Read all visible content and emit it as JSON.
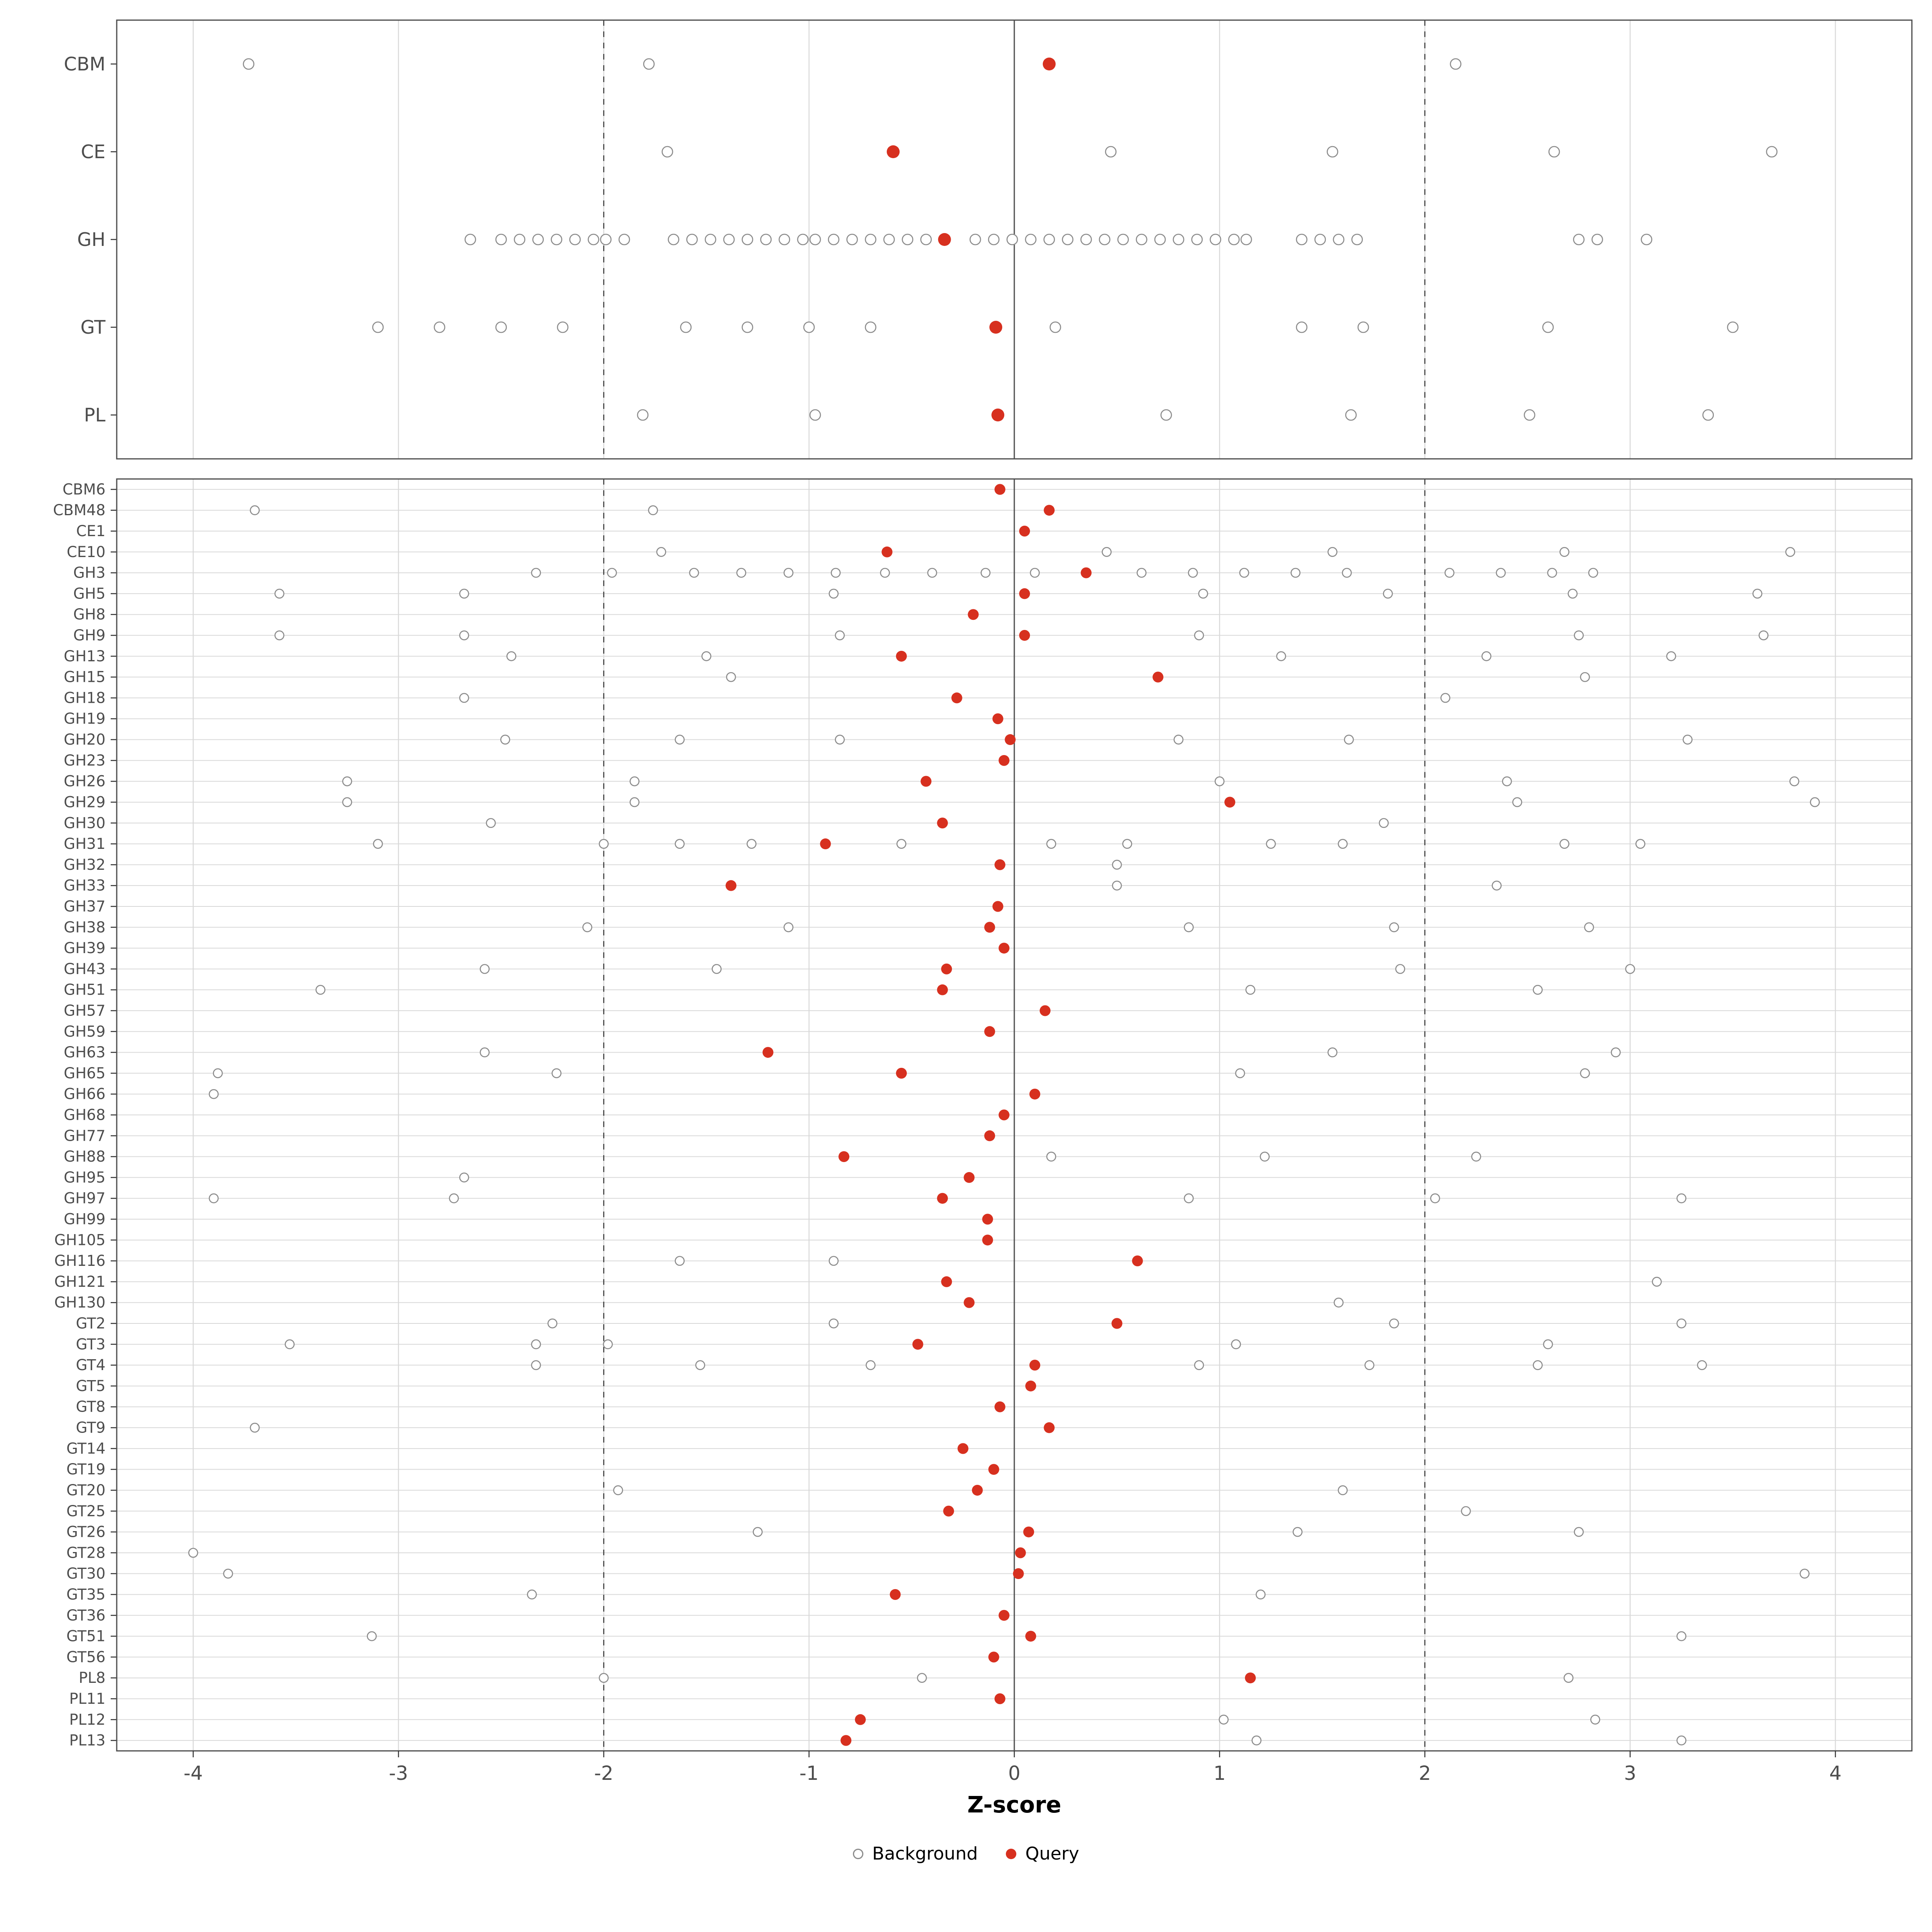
{
  "chart_data": {
    "type": "scatter",
    "title": "",
    "xlabel": "Z-score",
    "ylabel": "",
    "xlim": [
      -4.37,
      4.37
    ],
    "x_ticks": [
      -4,
      -3,
      -2,
      -1,
      0,
      1,
      2,
      3,
      4
    ],
    "reference_lines": {
      "solid": [
        0
      ],
      "dashed": [
        -2,
        2
      ]
    },
    "grid": true,
    "legend_position": "bottom",
    "legend": [
      {
        "label": "Background",
        "marker": "open-circle",
        "color": "#8c8c8c"
      },
      {
        "label": "Query",
        "marker": "filled-circle",
        "color": "#D7301F"
      }
    ],
    "colors": {
      "query": "#D7301F",
      "background_stroke": "#8c8c8c",
      "grid_major": "#d9d9d9",
      "axis_text": "#4d4d4d",
      "panel_border": "#4d4d4d",
      "ref_line": "#333333"
    },
    "panels": [
      {
        "name": "class-panel",
        "rows": [
          {
            "label": "CBM",
            "query": 0.17,
            "background": [
              -3.73,
              -1.78,
              2.15
            ]
          },
          {
            "label": "CE",
            "query": -0.59,
            "background": [
              -1.69,
              0.47,
              1.55,
              2.63,
              3.69
            ]
          },
          {
            "label": "GH",
            "query": -0.34,
            "background": [
              -2.65,
              -2.5,
              -2.41,
              -2.32,
              -2.23,
              -2.14,
              -2.05,
              -1.99,
              -1.9,
              -1.66,
              -1.57,
              -1.48,
              -1.39,
              -1.3,
              -1.21,
              -1.12,
              -1.03,
              -0.97,
              -0.88,
              -0.79,
              -0.7,
              -0.61,
              -0.52,
              -0.43,
              -0.19,
              -0.1,
              -0.01,
              0.08,
              0.17,
              0.26,
              0.35,
              0.44,
              0.53,
              0.62,
              0.71,
              0.8,
              0.89,
              0.98,
              1.07,
              1.13,
              1.4,
              1.49,
              1.58,
              1.67,
              2.75,
              2.84,
              3.08
            ]
          },
          {
            "label": "GT",
            "query": -0.09,
            "background": [
              -3.1,
              -2.8,
              -2.5,
              -2.2,
              -1.6,
              -1.3,
              -1.0,
              -0.7,
              0.2,
              1.4,
              1.7,
              2.6,
              3.5
            ]
          },
          {
            "label": "PL",
            "query": -0.08,
            "background": [
              -1.81,
              -0.97,
              0.74,
              1.64,
              2.51,
              3.38
            ]
          }
        ]
      },
      {
        "name": "family-panel",
        "rows": [
          {
            "label": "CBM6",
            "query": -0.07,
            "background": []
          },
          {
            "label": "CBM48",
            "query": 0.17,
            "background": [
              -3.7,
              -1.76
            ]
          },
          {
            "label": "CE1",
            "query": 0.05,
            "background": []
          },
          {
            "label": "CE10",
            "query": -0.62,
            "background": [
              -1.72,
              0.45,
              1.55,
              2.68,
              3.78
            ]
          },
          {
            "label": "GH3",
            "query": 0.35,
            "background": [
              -2.33,
              -1.96,
              -1.56,
              -1.33,
              -1.1,
              -0.87,
              -0.63,
              -0.4,
              -0.14,
              0.1,
              0.62,
              0.87,
              1.12,
              1.37,
              1.62,
              2.12,
              2.37,
              2.62,
              2.82
            ]
          },
          {
            "label": "GH5",
            "query": 0.05,
            "background": [
              -3.58,
              -2.68,
              -0.88,
              0.92,
              1.82,
              2.72,
              3.62
            ]
          },
          {
            "label": "GH8",
            "query": -0.2,
            "background": []
          },
          {
            "label": "GH9",
            "query": 0.05,
            "background": [
              -3.58,
              -2.68,
              -0.85,
              0.9,
              2.75,
              3.65
            ]
          },
          {
            "label": "GH13",
            "query": -0.55,
            "background": [
              -2.45,
              -1.5,
              1.3,
              2.3,
              3.2
            ]
          },
          {
            "label": "GH15",
            "query": 0.7,
            "background": [
              -1.38,
              2.78
            ]
          },
          {
            "label": "GH18",
            "query": -0.28,
            "background": [
              -2.68,
              2.1
            ]
          },
          {
            "label": "GH19",
            "query": -0.08,
            "background": []
          },
          {
            "label": "GH20",
            "query": -0.02,
            "background": [
              -2.48,
              -1.63,
              -0.85,
              0.8,
              1.63,
              3.28
            ]
          },
          {
            "label": "GH23",
            "query": -0.05,
            "background": []
          },
          {
            "label": "GH26",
            "query": -0.43,
            "background": [
              -3.25,
              -1.85,
              1.0,
              2.4,
              3.8
            ]
          },
          {
            "label": "GH29",
            "query": 1.05,
            "background": [
              -3.25,
              -1.85,
              2.45,
              3.9
            ]
          },
          {
            "label": "GH30",
            "query": -0.35,
            "background": [
              -2.55,
              1.8
            ]
          },
          {
            "label": "GH31",
            "query": -0.92,
            "background": [
              -3.1,
              -2.0,
              -1.63,
              -1.28,
              -0.55,
              0.18,
              0.55,
              1.25,
              1.6,
              2.68,
              3.05
            ]
          },
          {
            "label": "GH32",
            "query": -0.07,
            "background": [
              0.5
            ]
          },
          {
            "label": "GH33",
            "query": -1.38,
            "background": [
              0.5,
              2.35
            ]
          },
          {
            "label": "GH37",
            "query": -0.08,
            "background": []
          },
          {
            "label": "GH38",
            "query": -0.12,
            "background": [
              -2.08,
              -1.1,
              0.85,
              1.85,
              2.8
            ]
          },
          {
            "label": "GH39",
            "query": -0.05,
            "background": []
          },
          {
            "label": "GH43",
            "query": -0.33,
            "background": [
              -2.58,
              -1.45,
              1.88,
              3.0
            ]
          },
          {
            "label": "GH51",
            "query": -0.35,
            "background": [
              -3.38,
              1.15,
              2.55
            ]
          },
          {
            "label": "GH57",
            "query": 0.15,
            "background": []
          },
          {
            "label": "GH59",
            "query": -0.12,
            "background": []
          },
          {
            "label": "GH63",
            "query": -1.2,
            "background": [
              -2.58,
              1.55,
              2.93
            ]
          },
          {
            "label": "GH65",
            "query": -0.55,
            "background": [
              -3.88,
              -2.23,
              1.1,
              2.78
            ]
          },
          {
            "label": "GH66",
            "query": 0.1,
            "background": [
              -3.9
            ]
          },
          {
            "label": "GH68",
            "query": -0.05,
            "background": []
          },
          {
            "label": "GH77",
            "query": -0.12,
            "background": []
          },
          {
            "label": "GH88",
            "query": -0.83,
            "background": [
              0.18,
              1.22,
              2.25
            ]
          },
          {
            "label": "GH95",
            "query": -0.22,
            "background": [
              -2.68
            ]
          },
          {
            "label": "GH97",
            "query": -0.35,
            "background": [
              -3.9,
              -2.73,
              0.85,
              2.05,
              3.25
            ]
          },
          {
            "label": "GH99",
            "query": -0.13,
            "background": []
          },
          {
            "label": "GH105",
            "query": -0.13,
            "background": []
          },
          {
            "label": "GH116",
            "query": 0.6,
            "background": [
              -1.63,
              -0.88
            ]
          },
          {
            "label": "GH121",
            "query": -0.33,
            "background": [
              3.13
            ]
          },
          {
            "label": "GH130",
            "query": -0.22,
            "background": [
              1.58
            ]
          },
          {
            "label": "GT2",
            "query": 0.5,
            "background": [
              -2.25,
              -0.88,
              1.85,
              3.25
            ]
          },
          {
            "label": "GT3",
            "query": -0.47,
            "background": [
              -3.53,
              -2.33,
              -1.98,
              1.08,
              2.6
            ]
          },
          {
            "label": "GT4",
            "query": 0.1,
            "background": [
              -2.33,
              -1.53,
              -0.7,
              0.9,
              1.73,
              2.55,
              3.35
            ]
          },
          {
            "label": "GT5",
            "query": 0.08,
            "background": []
          },
          {
            "label": "GT8",
            "query": -0.07,
            "background": []
          },
          {
            "label": "GT9",
            "query": 0.17,
            "background": [
              -3.7
            ]
          },
          {
            "label": "GT14",
            "query": -0.25,
            "background": []
          },
          {
            "label": "GT19",
            "query": -0.1,
            "background": []
          },
          {
            "label": "GT20",
            "query": -0.18,
            "background": [
              -1.93,
              1.6
            ]
          },
          {
            "label": "GT25",
            "query": -0.32,
            "background": [
              2.2
            ]
          },
          {
            "label": "GT26",
            "query": 0.07,
            "background": [
              -1.25,
              1.38,
              2.75
            ]
          },
          {
            "label": "GT28",
            "query": 0.03,
            "background": [
              -4.0
            ]
          },
          {
            "label": "GT30",
            "query": 0.02,
            "background": [
              -3.83,
              3.85
            ]
          },
          {
            "label": "GT35",
            "query": -0.58,
            "background": [
              -2.35,
              1.2
            ]
          },
          {
            "label": "GT36",
            "query": -0.05,
            "background": []
          },
          {
            "label": "GT51",
            "query": 0.08,
            "background": [
              -3.13,
              3.25
            ]
          },
          {
            "label": "GT56",
            "query": -0.1,
            "background": []
          },
          {
            "label": "PL8",
            "query": 1.15,
            "background": [
              -2.0,
              -0.45,
              2.7
            ]
          },
          {
            "label": "PL11",
            "query": -0.07,
            "background": []
          },
          {
            "label": "PL12",
            "query": -0.75,
            "background": [
              1.02,
              2.83
            ]
          },
          {
            "label": "PL13",
            "query": -0.82,
            "background": [
              1.18,
              3.25
            ]
          }
        ]
      }
    ]
  }
}
